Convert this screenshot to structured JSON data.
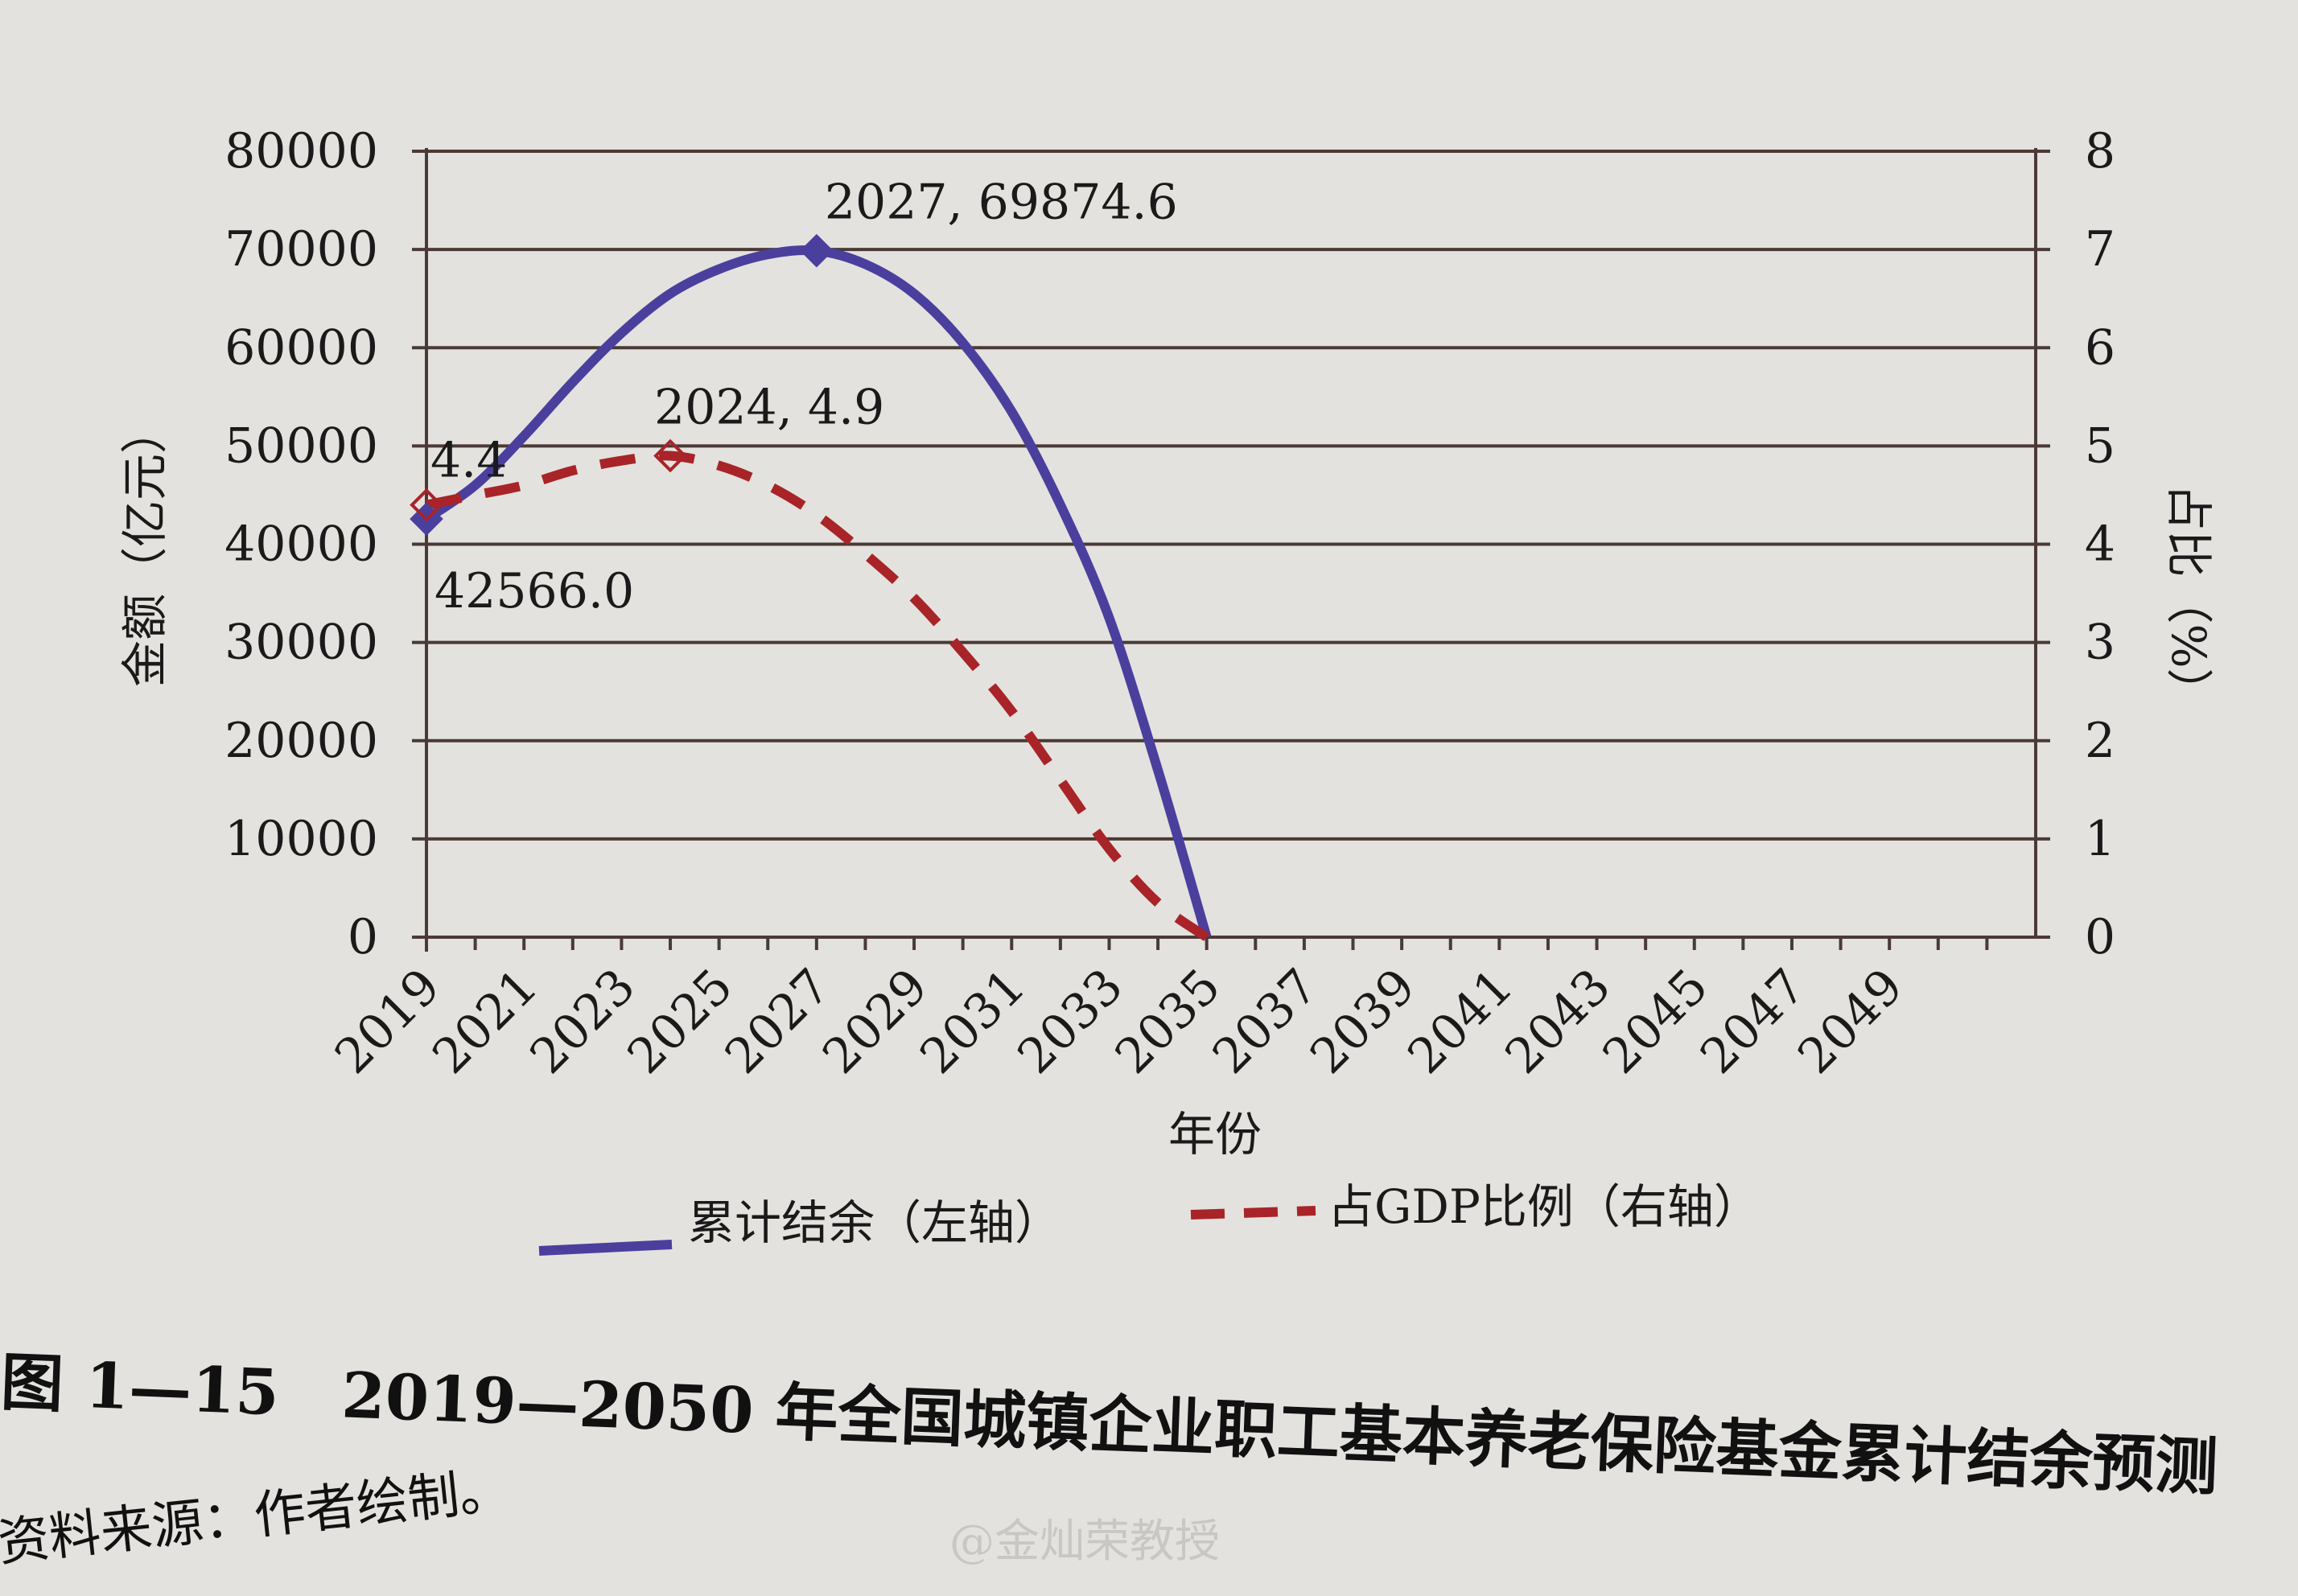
{
  "chart_data": {
    "type": "line",
    "xlabel": "年份",
    "ylabel_left": "金额（亿元）",
    "ylabel_right": "占比（%）",
    "ylim_left": [
      0,
      80000
    ],
    "ylim_right": [
      0,
      8
    ],
    "yticks_left": [
      "0",
      "10000",
      "20000",
      "30000",
      "40000",
      "50000",
      "60000",
      "70000",
      "80000"
    ],
    "yticks_right": [
      "0",
      "1",
      "2",
      "3",
      "4",
      "5",
      "6",
      "7",
      "8"
    ],
    "x_range": [
      2019,
      2050
    ],
    "xtick_labels": [
      "2019",
      "2021",
      "2023",
      "2025",
      "2027",
      "2029",
      "2031",
      "2033",
      "2035",
      "2037",
      "2039",
      "2041",
      "2043",
      "2045",
      "2047",
      "2049"
    ],
    "grid": true,
    "legend_placement": "bottom",
    "series": [
      {
        "name": "累计结余（左轴）",
        "axis": "left",
        "color": "#4b3f9e",
        "style": "solid",
        "x": [
          2019,
          2020,
          2021,
          2022,
          2023,
          2024,
          2025,
          2026,
          2027,
          2028,
          2029,
          2030,
          2031,
          2032,
          2033,
          2034,
          2035
        ],
        "values": [
          42566.0,
          46000,
          51000,
          56500,
          61500,
          65500,
          68000,
          69500,
          69874.6,
          68500,
          65500,
          60500,
          53500,
          44000,
          32500,
          17000,
          0
        ]
      },
      {
        "name": "占GDP比例（右轴）",
        "axis": "right",
        "color": "#a82428",
        "style": "dashed",
        "x": [
          2019,
          2020,
          2021,
          2022,
          2023,
          2024,
          2025,
          2026,
          2027,
          2028,
          2029,
          2030,
          2031,
          2032,
          2033,
          2034,
          2035
        ],
        "values": [
          4.4,
          4.5,
          4.6,
          4.75,
          4.85,
          4.9,
          4.8,
          4.6,
          4.3,
          3.9,
          3.45,
          2.9,
          2.3,
          1.6,
          0.9,
          0.35,
          0
        ]
      }
    ],
    "annotations": [
      {
        "text": "2027, 69874.6",
        "x": 2027,
        "y": 69874.6,
        "axis": "left"
      },
      {
        "text": "42566.0",
        "x": 2019,
        "y": 42566.0,
        "axis": "left"
      },
      {
        "text": "2024, 4.9",
        "x": 2024,
        "y": 4.9,
        "axis": "right"
      },
      {
        "text": "4.4",
        "x": 2019,
        "y": 4.4,
        "axis": "right"
      }
    ]
  },
  "caption": "图 1—15　2019—2050 年全国城镇企业职工基本养老保险基金累计结余预测",
  "source": "资料来源：作者绘制。",
  "watermark": "@金灿荣教授"
}
